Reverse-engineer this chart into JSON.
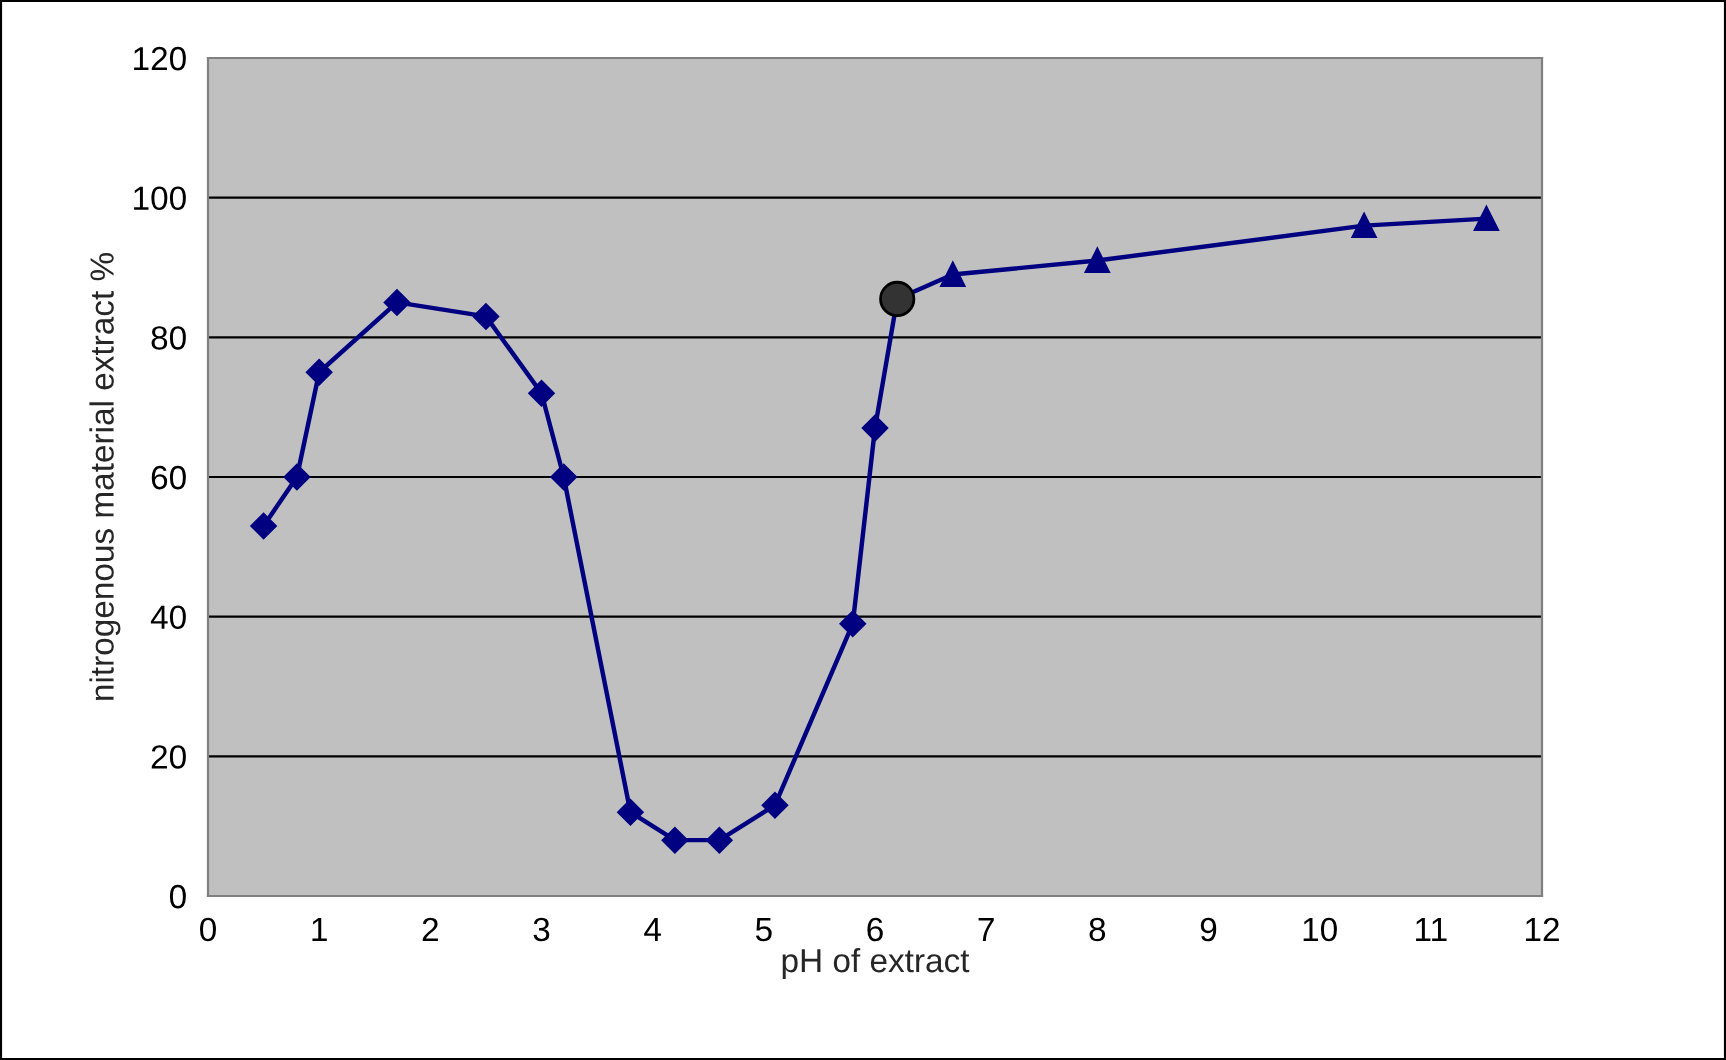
{
  "chart_data": {
    "type": "line",
    "xlabel": "pH of extract",
    "ylabel": "nitrogenous material extract %",
    "xlim": [
      0,
      12
    ],
    "xticks": [
      0,
      1,
      2,
      3,
      4,
      5,
      6,
      7,
      8,
      9,
      10,
      11,
      12
    ],
    "ylim": [
      0,
      120
    ],
    "yticks": [
      0,
      20,
      40,
      60,
      80,
      100,
      120
    ],
    "grid": "y",
    "legend": false,
    "series": [
      {
        "color": "#000080",
        "marker": "none",
        "x": [
          0.5,
          0.8,
          1,
          1.7,
          2.5,
          3,
          3.2,
          3.8,
          4.2,
          4.6,
          5.1,
          5.8,
          6,
          6.2,
          6.7,
          8,
          10.4,
          11.5
        ],
        "values": [
          53,
          60,
          75,
          85,
          83,
          72,
          60,
          12,
          8,
          8,
          13,
          39,
          67,
          85.5,
          89,
          91,
          96,
          97
        ]
      },
      {
        "type": "scatter",
        "color": "#000080",
        "marker": "diamond",
        "x": [
          0.5,
          0.8,
          1,
          1.7,
          2.5,
          3,
          3.2,
          3.8,
          4.2,
          4.6,
          5.1,
          5.8,
          6
        ],
        "values": [
          53,
          60,
          75,
          85,
          83,
          72,
          60,
          12,
          8,
          8,
          13,
          39,
          67
        ]
      },
      {
        "type": "scatter",
        "color": "#333333",
        "marker": "circle",
        "x": [
          6.2
        ],
        "values": [
          85.5
        ]
      },
      {
        "type": "scatter",
        "color": "#000080",
        "marker": "triangle",
        "x": [
          6.7,
          8,
          10.4,
          11.5
        ],
        "values": [
          89,
          91,
          96,
          97
        ]
      }
    ]
  }
}
